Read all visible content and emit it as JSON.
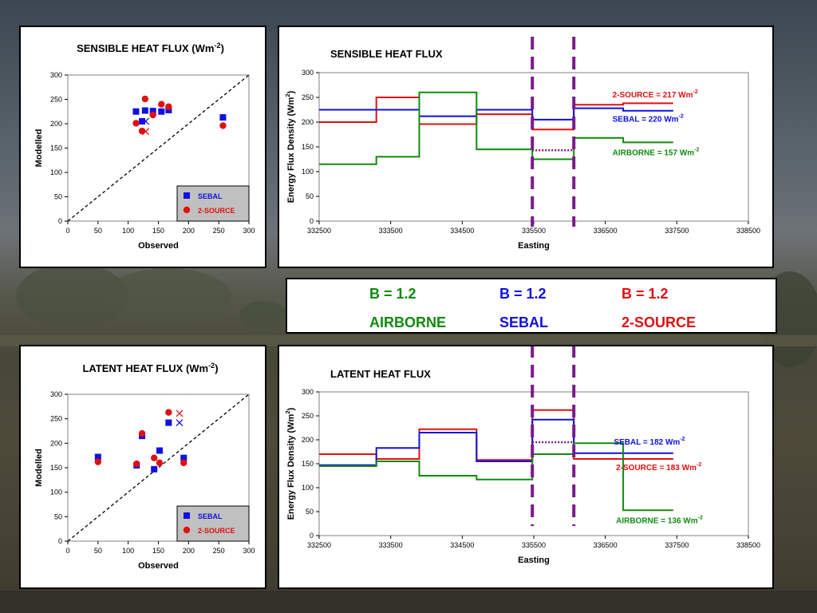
{
  "colors": {
    "sebal": "#1010e0",
    "two_source": "#e01010",
    "airborne": "#108a10",
    "purple": "#7a1a8a",
    "legend_box": "#c0c0c0"
  },
  "center_legend": {
    "airborne": {
      "b": "B = 1.2",
      "name": "AIRBORNE"
    },
    "sebal": {
      "b": "B = 1.2",
      "name": "SEBAL"
    },
    "two_source": {
      "b": "B = 1.2",
      "name": "2-SOURCE"
    }
  },
  "chart_data": [
    {
      "id": "scatter_sensible",
      "type": "scatter",
      "title": "SENSIBLE HEAT FLUX (Wm",
      "title_sup": "-2",
      "title_tail": ")",
      "xlabel": "Observed",
      "ylabel": "Modelled",
      "xlim": [
        0,
        300
      ],
      "ylim": [
        0,
        300
      ],
      "xticks": [
        0,
        50,
        100,
        150,
        200,
        250,
        300
      ],
      "yticks": [
        0,
        50,
        100,
        150,
        200,
        250,
        300
      ],
      "legend": [
        "SEBAL",
        "2-SOURCE"
      ],
      "legend_position": "bottom-right",
      "one_to_one_line": true,
      "series": [
        {
          "name": "SEBAL",
          "marker": "square",
          "points": [
            [
              113,
              225
            ],
            [
              128,
              227
            ],
            [
              141,
              226
            ],
            [
              155,
              225
            ],
            [
              167,
              228
            ],
            [
              257,
              213
            ],
            [
              123,
              205
            ]
          ]
        },
        {
          "name": "2-SOURCE",
          "marker": "circle",
          "points": [
            [
              113,
              201
            ],
            [
              128,
              251
            ],
            [
              141,
              218
            ],
            [
              155,
              240
            ],
            [
              167,
              235
            ],
            [
              257,
              196
            ],
            [
              123,
              185
            ]
          ]
        },
        {
          "name": "SEBAL",
          "marker": "x",
          "points": [
            [
              129,
              205
            ]
          ]
        },
        {
          "name": "2-SOURCE",
          "marker": "x",
          "points": [
            [
              129,
              184
            ]
          ]
        }
      ]
    },
    {
      "id": "line_sensible",
      "type": "line",
      "title": "SENSIBLE HEAT FLUX",
      "xlabel": "Easting",
      "ylabel": "Energy Flux Density (Wm",
      "ylabel_sup": "2",
      "ylabel_tail": ")",
      "xlim": [
        332500,
        338500
      ],
      "ylim": [
        0,
        300
      ],
      "xticks": [
        332500,
        333500,
        334500,
        335500,
        336500,
        337500,
        338500
      ],
      "yticks": [
        0,
        50,
        100,
        150,
        200,
        250,
        300
      ],
      "vlines": [
        335480,
        336060
      ],
      "series": [
        {
          "name": "2-SOURCE",
          "x": [
            332500,
            333300,
            333300,
            333900,
            333900,
            334700,
            334700,
            335480,
            335480,
            336060,
            336060,
            336750,
            336750,
            337450
          ],
          "y": [
            200,
            200,
            250,
            250,
            196,
            196,
            216,
            216,
            185,
            185,
            235,
            235,
            238,
            238
          ]
        },
        {
          "name": "SEBAL",
          "x": [
            332500,
            333900,
            333900,
            334700,
            334700,
            335480,
            335480,
            336060,
            336060,
            336750,
            336750,
            337450
          ],
          "y": [
            225,
            225,
            212,
            212,
            225,
            225,
            205,
            205,
            228,
            228,
            223,
            223
          ]
        },
        {
          "name": "AIRBORNE",
          "x": [
            332500,
            333300,
            333300,
            333900,
            333900,
            334700,
            334700,
            335480,
            335480,
            336060,
            336060,
            336750,
            336750,
            337450
          ],
          "y": [
            115,
            115,
            130,
            130,
            260,
            260,
            145,
            145,
            125,
            125,
            168,
            168,
            159,
            159
          ]
        },
        {
          "name": "dotted",
          "x": [
            335480,
            336060
          ],
          "y": [
            143,
            143
          ]
        }
      ],
      "labels": [
        {
          "series": "2-SOURCE",
          "text": "2-SOURCE = 217 Wm",
          "sup": "-2",
          "at": [
            336600,
            250
          ]
        },
        {
          "series": "SEBAL",
          "text": "SEBAL = 220 Wm",
          "sup": "-2",
          "at": [
            336600,
            201
          ]
        },
        {
          "series": "AIRBORNE",
          "text": "AIRBORNE = 157 Wm",
          "sup": "-2",
          "at": [
            336600,
            133
          ]
        }
      ]
    },
    {
      "id": "scatter_latent",
      "type": "scatter",
      "title": "LATENT HEAT FLUX (Wm",
      "title_sup": "-2",
      "title_tail": ")",
      "xlabel": "Observed",
      "ylabel": "Modelled",
      "xlim": [
        0,
        300
      ],
      "ylim": [
        0,
        300
      ],
      "xticks": [
        0,
        50,
        100,
        150,
        200,
        250,
        300
      ],
      "yticks": [
        0,
        50,
        100,
        150,
        200,
        250,
        300
      ],
      "legend": [
        "SEBAL",
        "2-SOURCE"
      ],
      "legend_position": "bottom-right",
      "one_to_one_line": true,
      "series": [
        {
          "name": "SEBAL",
          "marker": "square",
          "points": [
            [
              50,
              172
            ],
            [
              114,
              155
            ],
            [
              123,
              215
            ],
            [
              143,
              147
            ],
            [
              152,
              185
            ],
            [
              167,
              242
            ],
            [
              192,
              170
            ]
          ]
        },
        {
          "name": "2-SOURCE",
          "marker": "circle",
          "points": [
            [
              50,
              162
            ],
            [
              114,
              158
            ],
            [
              123,
              220
            ],
            [
              143,
              170
            ],
            [
              152,
              160
            ],
            [
              167,
              263
            ],
            [
              192,
              160
            ]
          ]
        },
        {
          "name": "SEBAL",
          "marker": "x",
          "points": [
            [
              185,
              242
            ]
          ]
        },
        {
          "name": "2-SOURCE",
          "marker": "x",
          "points": [
            [
              185,
              261
            ]
          ]
        }
      ]
    },
    {
      "id": "line_latent",
      "type": "line",
      "title": "LATENT HEAT FLUX",
      "xlabel": "Easting",
      "ylabel": "Energy Flux Density (Wm",
      "ylabel_sup": "2",
      "ylabel_tail": ")",
      "xlim": [
        332500,
        338500
      ],
      "ylim": [
        0,
        300
      ],
      "xticks": [
        332500,
        333500,
        334500,
        335500,
        336500,
        337500,
        338500
      ],
      "yticks": [
        0,
        50,
        100,
        150,
        200,
        250,
        300
      ],
      "vlines": [
        335480,
        336060
      ],
      "series": [
        {
          "name": "2-SOURCE",
          "x": [
            332500,
            333300,
            333300,
            333900,
            333900,
            334700,
            334700,
            335480,
            335480,
            336060,
            336060,
            336750,
            336750,
            337450
          ],
          "y": [
            170,
            170,
            160,
            160,
            222,
            222,
            158,
            158,
            262,
            262,
            160,
            160,
            160,
            160
          ]
        },
        {
          "name": "SEBAL",
          "x": [
            332500,
            333300,
            333300,
            333900,
            333900,
            334700,
            334700,
            335480,
            335480,
            336060,
            336060,
            336750,
            336750,
            337450
          ],
          "y": [
            147,
            147,
            183,
            183,
            215,
            215,
            155,
            155,
            242,
            242,
            172,
            172,
            172,
            172
          ]
        },
        {
          "name": "AIRBORNE",
          "x": [
            332500,
            333300,
            333300,
            333900,
            333900,
            334700,
            334700,
            335480,
            335480,
            336060,
            336060,
            336750,
            336750,
            337450
          ],
          "y": [
            145,
            145,
            155,
            155,
            125,
            125,
            117,
            117,
            170,
            170,
            193,
            193,
            53,
            53
          ]
        },
        {
          "name": "dotted",
          "x": [
            335480,
            336060
          ],
          "y": [
            195,
            195
          ]
        }
      ],
      "labels": [
        {
          "series": "SEBAL",
          "text": "SEBAL = 182 Wm",
          "sup": "-2",
          "at": [
            336620,
            190
          ]
        },
        {
          "series": "2-SOURCE",
          "text": "2-SOURCE = 183 Wm",
          "sup": "-2",
          "at": [
            336650,
            137
          ]
        },
        {
          "series": "AIRBORNE",
          "text": "AIRBORNE = 136 Wm",
          "sup": "-2",
          "at": [
            336650,
            26
          ]
        }
      ]
    }
  ]
}
